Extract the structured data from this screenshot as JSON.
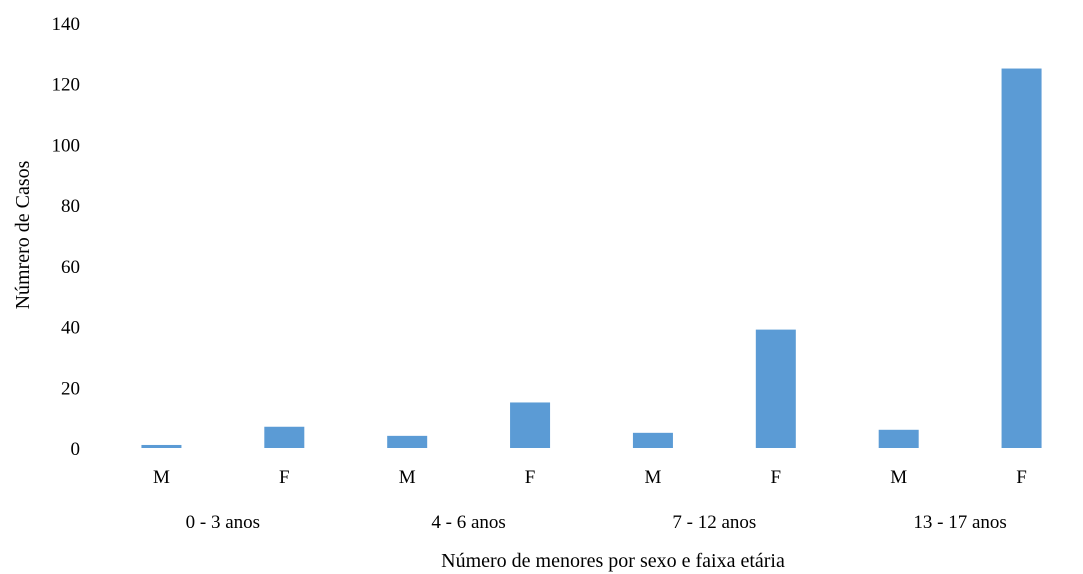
{
  "chart_data": {
    "type": "bar",
    "title": "",
    "ylabel": "Númrero de Casos",
    "xlabel": "Número de menores por sexo e faixa etária",
    "ylim": [
      0,
      140
    ],
    "yticks": [
      0,
      20,
      40,
      60,
      80,
      100,
      120,
      140
    ],
    "grid": false,
    "legend": "none",
    "bar_color": "#5B9BD5",
    "categories": [
      "M",
      "F",
      "M",
      "F",
      "M",
      "F",
      "M",
      "F"
    ],
    "groups": [
      "0 - 3 anos",
      "4 - 6 anos",
      "7 - 12 anos",
      "13 - 17 anos"
    ],
    "values": [
      1,
      7,
      4,
      15,
      5,
      39,
      6,
      125
    ]
  }
}
